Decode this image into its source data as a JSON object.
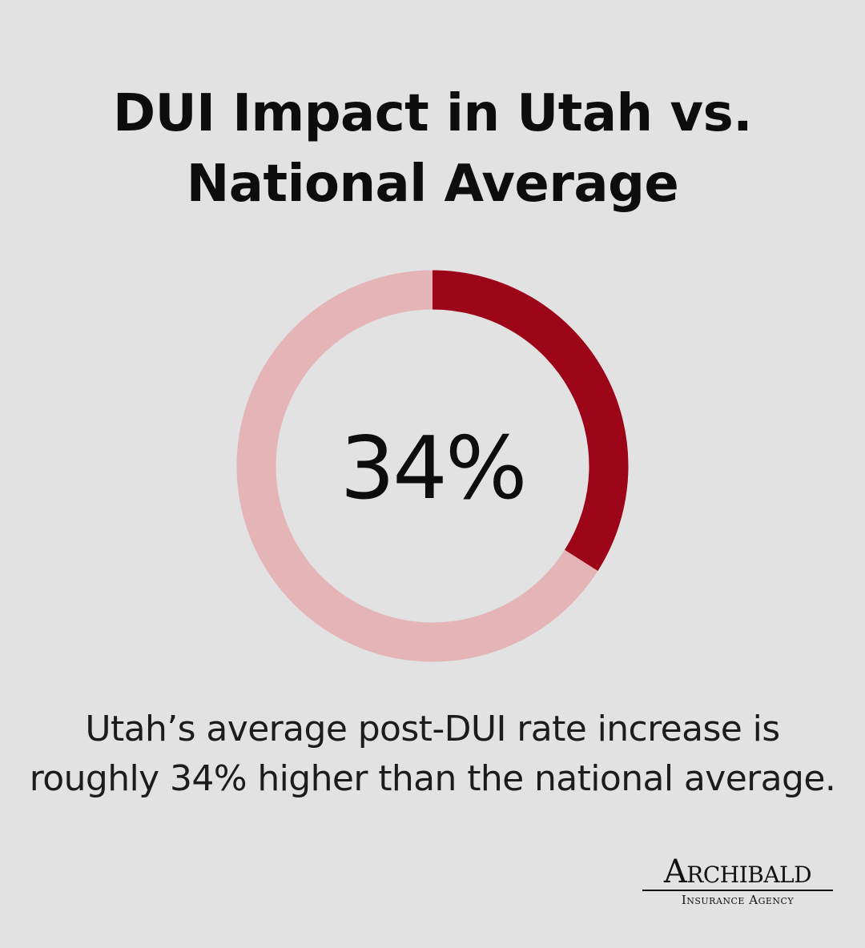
{
  "title": {
    "line1": "DUI Impact in Utah vs.",
    "line2": "National Average"
  },
  "caption": {
    "line1": "Utah’s average post-DUI rate increase is",
    "line2": "roughly 34% higher than the national average."
  },
  "logo": {
    "main": "Archibald",
    "sub": "Insurance Agency"
  },
  "colors": {
    "background": "#e1e2e1",
    "accent": "#9c0417",
    "track": "#e4b4b7",
    "text": "#0d0d0d"
  },
  "chart_data": {
    "type": "pie",
    "style": "donut",
    "value": 34,
    "max": 100,
    "center_label": "34%"
  }
}
